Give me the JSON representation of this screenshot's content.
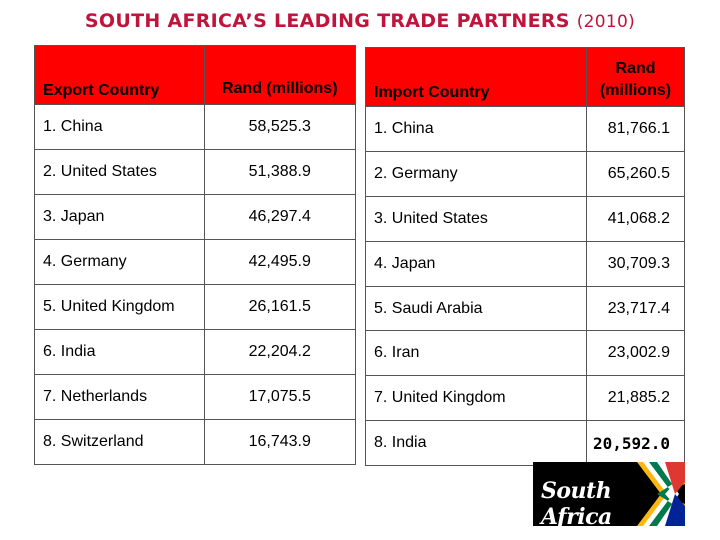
{
  "title": {
    "main": "SOUTH AFRICA’S LEADING TRADE PARTNERS",
    "year": "(2010)"
  },
  "export_table": {
    "headers": [
      "Export Country",
      "Rand (millions)"
    ],
    "rows": [
      [
        "1. China",
        "58,525.3"
      ],
      [
        "2. United States",
        "51,388.9"
      ],
      [
        "3. Japan",
        "46,297.4"
      ],
      [
        "4. Germany",
        "42,495.9"
      ],
      [
        "5. United Kingdom",
        "26,161.5"
      ],
      [
        "6. India",
        "22,204.2"
      ],
      [
        "7. Netherlands",
        "17,075.5"
      ],
      [
        "8. Switzerland",
        "16,743.9"
      ]
    ]
  },
  "import_table": {
    "headers": [
      "Import Country",
      "Rand (millions)"
    ],
    "rows": [
      [
        "1. China",
        "81,766.1"
      ],
      [
        "2. Germany",
        "65,260.5"
      ],
      [
        "3. United States",
        "41,068.2"
      ],
      [
        "4. Japan",
        "30,709.3"
      ],
      [
        "5. Saudi Arabia",
        "23,717.4"
      ],
      [
        "6. Iran",
        "23,002.9"
      ],
      [
        "7. United Kingdom",
        "21,885.2"
      ],
      [
        "8. India",
        "20,592.0"
      ]
    ]
  },
  "logo": {
    "text": "South Africa"
  },
  "colors": {
    "title": "#c0143c",
    "header_bg": "#ff0000"
  }
}
